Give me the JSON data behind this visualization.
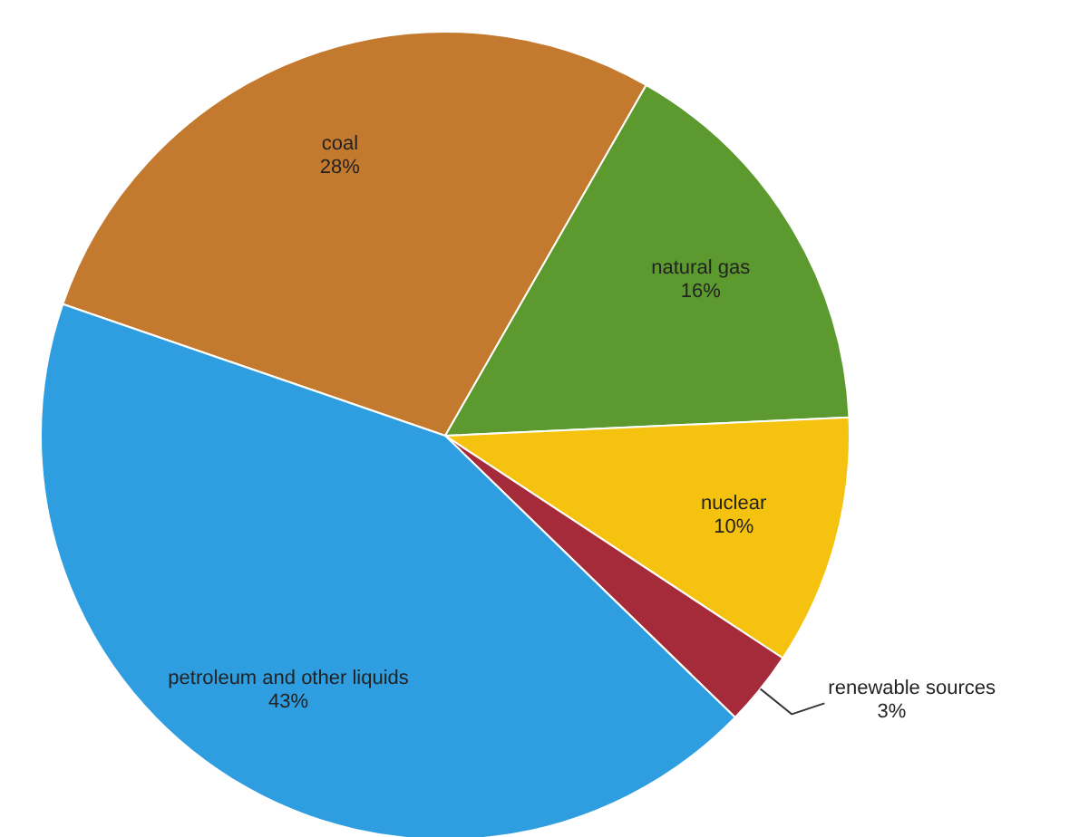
{
  "chart_data": {
    "type": "pie",
    "categories": [
      "coal",
      "natural gas",
      "nuclear",
      "renewable sources",
      "petroleum and other liquids"
    ],
    "values": [
      28,
      16,
      10,
      3,
      43
    ],
    "value_labels": [
      "28%",
      "16%",
      "10%",
      "3%",
      "43%"
    ],
    "colors": [
      "#c47a2e",
      "#5c9a2f",
      "#f5c30f",
      "#a52a3a",
      "#2e9ee0"
    ]
  }
}
